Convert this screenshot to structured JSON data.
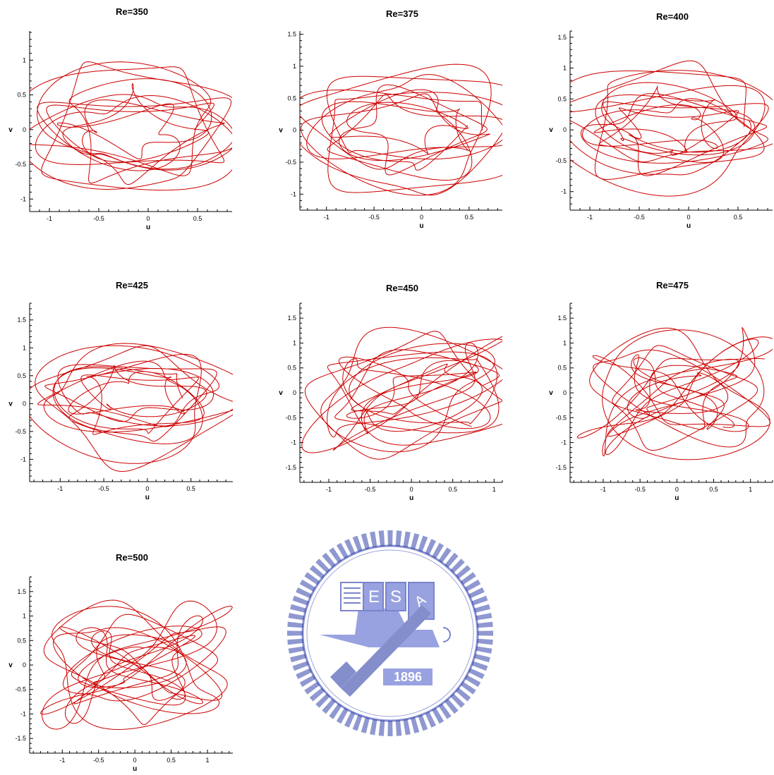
{
  "watermark": {
    "year": "1896",
    "letters": [
      "E",
      "S",
      "A"
    ],
    "color": "#2233aa"
  },
  "chart_data": [
    {
      "type": "line",
      "title": "Re=350",
      "xlabel": "u",
      "ylabel": "v",
      "xlim": [
        -1.2,
        0.85
      ],
      "ylim": [
        -1.18,
        1.42
      ],
      "xticks": [
        "-1",
        "-0.5",
        "0",
        "0.5"
      ],
      "xtick_values": [
        -1,
        -0.5,
        0,
        0.5
      ],
      "yticks": [
        "-1",
        "-0.5",
        "0",
        "0.5",
        "1"
      ],
      "ytick_values": [
        -1,
        -0.5,
        0,
        0.5,
        1
      ],
      "series": [
        {
          "color": "#cc0000",
          "note_shape": "spiral-fan",
          "center": [
            0.0,
            0.0
          ],
          "r": [
            0.35,
            1.35
          ],
          "n_loops": 11
        }
      ]
    },
    {
      "type": "line",
      "title": "Re=375",
      "xlabel": "u",
      "ylabel": "v",
      "xlim": [
        -1.28,
        0.85
      ],
      "ylim": [
        -1.25,
        1.55
      ],
      "xticks": [
        "-1",
        "-0.5",
        "0",
        "0.5"
      ],
      "xtick_values": [
        -1,
        -0.5,
        0,
        0.5
      ],
      "yticks": [
        "-1",
        "-0.5",
        "0",
        "0.5",
        "1",
        "1.5"
      ],
      "ytick_values": [
        -1,
        -0.5,
        0,
        0.5,
        1,
        1.5
      ],
      "series": [
        {
          "color": "#cc0000",
          "note_shape": "spiral-fan",
          "center": [
            0.0,
            0.0
          ],
          "r": [
            0.35,
            1.45
          ],
          "n_loops": 11
        }
      ]
    },
    {
      "type": "line",
      "title": "Re=400",
      "xlabel": "u",
      "ylabel": "v",
      "xlim": [
        -1.2,
        0.85
      ],
      "ylim": [
        -1.3,
        1.6
      ],
      "xticks": [
        "-1",
        "-0.5",
        "0",
        "0.5"
      ],
      "xtick_values": [
        -1,
        -0.5,
        0,
        0.5
      ],
      "yticks": [
        "-1",
        "-0.5",
        "0",
        "0.5",
        "1",
        "1.5"
      ],
      "ytick_values": [
        -1,
        -0.5,
        0,
        0.5,
        1,
        1.5
      ],
      "series": [
        {
          "color": "#cc0000",
          "note_shape": "spiral-fan",
          "center": [
            -0.05,
            0.05
          ],
          "r": [
            0.3,
            1.45
          ],
          "n_loops": 12
        }
      ]
    },
    {
      "type": "line",
      "title": "Re=425",
      "xlabel": "u",
      "ylabel": "v",
      "xlim": [
        -1.35,
        0.98
      ],
      "ylim": [
        -1.4,
        1.8
      ],
      "xticks": [
        "-1",
        "-0.5",
        "0",
        "0.5"
      ],
      "xtick_values": [
        -1,
        -0.5,
        0,
        0.5
      ],
      "yticks": [
        "-1",
        "-0.5",
        "0",
        "0.5",
        "1",
        "1.5"
      ],
      "ytick_values": [
        -1,
        -0.5,
        0,
        0.5,
        1,
        1.5
      ],
      "series": [
        {
          "color": "#cc0000",
          "note_shape": "spiral-fan",
          "center": [
            0.0,
            0.1
          ],
          "r": [
            0.35,
            1.6
          ],
          "n_loops": 12
        }
      ]
    },
    {
      "type": "line",
      "title": "Re=450",
      "xlabel": "u",
      "ylabel": "v",
      "xlim": [
        -1.35,
        1.1
      ],
      "ylim": [
        -1.8,
        1.8
      ],
      "xticks": [
        "-1",
        "-0.5",
        "0",
        "0.5",
        "1"
      ],
      "xtick_values": [
        -1,
        -0.5,
        0,
        0.5,
        1
      ],
      "yticks": [
        "-1.5",
        "-1",
        "-0.5",
        "0",
        "0.5",
        "1",
        "1.5"
      ],
      "ytick_values": [
        -1.5,
        -1,
        -0.5,
        0,
        0.5,
        1,
        1.5
      ],
      "series": [
        {
          "color": "#cc0000",
          "note_shape": "tangle",
          "center": [
            0.0,
            0.0
          ],
          "r": [
            0.4,
            1.65
          ],
          "n_loops": 13
        }
      ]
    },
    {
      "type": "line",
      "title": "Re=475",
      "xlabel": "u",
      "ylabel": "v",
      "xlim": [
        -1.45,
        1.3
      ],
      "ylim": [
        -1.8,
        1.8
      ],
      "xticks": [
        "-1",
        "-0.5",
        "0",
        "0.5",
        "1"
      ],
      "xtick_values": [
        -1,
        -0.5,
        0,
        0.5,
        1
      ],
      "yticks": [
        "-1.5",
        "-1",
        "-0.5",
        "0",
        "0.5",
        "1",
        "1.5"
      ],
      "ytick_values": [
        -1.5,
        -1,
        -0.5,
        0,
        0.5,
        1,
        1.5
      ],
      "series": [
        {
          "color": "#cc0000",
          "note_shape": "tangle",
          "center": [
            0.0,
            0.0
          ],
          "r": [
            0.35,
            1.7
          ],
          "n_loops": 13
        }
      ]
    },
    {
      "type": "line",
      "title": "Re=500",
      "xlabel": "u",
      "ylabel": "v",
      "xlim": [
        -1.45,
        1.35
      ],
      "ylim": [
        -1.8,
        1.8
      ],
      "xticks": [
        "-1",
        "-0.5",
        "0",
        "0.5",
        "1"
      ],
      "xtick_values": [
        -1,
        -0.5,
        0,
        0.5,
        1
      ],
      "yticks": [
        "-1.5",
        "-1",
        "-0.5",
        "0",
        "0.5",
        "1",
        "1.5"
      ],
      "ytick_values": [
        -1.5,
        -1,
        -0.5,
        0,
        0.5,
        1,
        1.5
      ],
      "series": [
        {
          "color": "#cc0000",
          "note_shape": "tangle",
          "center": [
            0.0,
            0.0
          ],
          "r": [
            0.35,
            1.7
          ],
          "n_loops": 14
        }
      ]
    }
  ]
}
